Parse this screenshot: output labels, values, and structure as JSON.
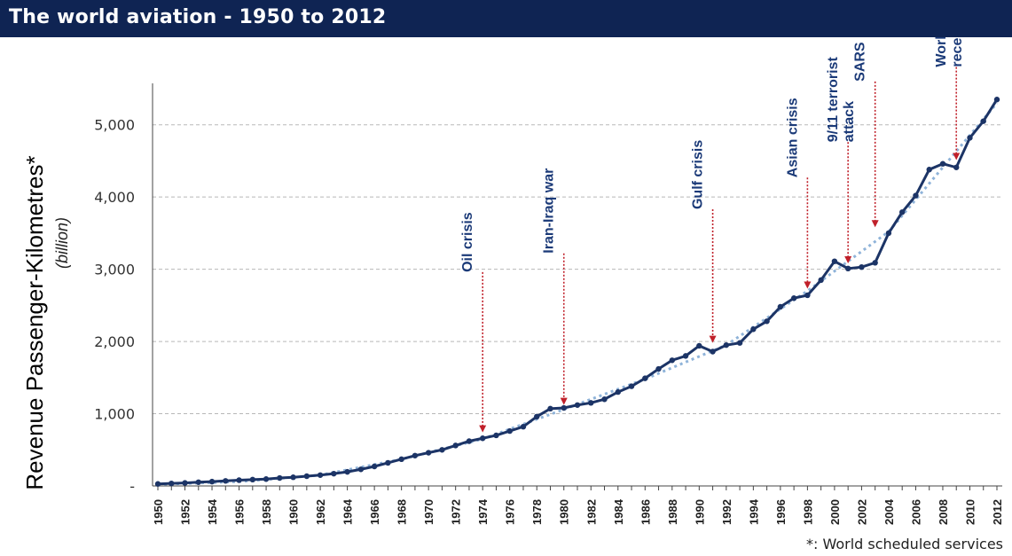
{
  "title": "The world aviation - 1950 to 2012",
  "footnote": "*: World scheduled services",
  "chart_data": {
    "type": "line",
    "ylabel": "Revenue Passenger-Kilometres*",
    "ylabel_unit": "(billion)",
    "ylim": [
      0,
      5500
    ],
    "yticks": [
      {
        "value": 0,
        "label": "-"
      },
      {
        "value": 1000,
        "label": "1,000"
      },
      {
        "value": 2000,
        "label": "2,000"
      },
      {
        "value": 3000,
        "label": "3,000"
      },
      {
        "value": 4000,
        "label": "4,000"
      },
      {
        "value": 5000,
        "label": "5,000"
      }
    ],
    "xlim": [
      1950,
      2012
    ],
    "xtick_labels": [
      "1950",
      "1952",
      "1954",
      "1956",
      "1958",
      "1960",
      "1962",
      "1964",
      "1966",
      "1968",
      "1970",
      "1972",
      "1974",
      "1976",
      "1978",
      "1980",
      "1982",
      "1984",
      "1986",
      "1988",
      "1990",
      "1992",
      "1994",
      "1996",
      "1998",
      "2000",
      "2002",
      "2004",
      "2006",
      "2008",
      "2010",
      "2012"
    ],
    "grid": "horizontal dashed",
    "series": [
      {
        "style": "solid dark navy line with markers",
        "color": "#1c3466",
        "x": [
          1950,
          1951,
          1952,
          1953,
          1954,
          1955,
          1956,
          1957,
          1958,
          1959,
          1960,
          1961,
          1962,
          1963,
          1964,
          1965,
          1966,
          1967,
          1968,
          1969,
          1970,
          1971,
          1972,
          1973,
          1974,
          1975,
          1976,
          1977,
          1978,
          1979,
          1980,
          1981,
          1982,
          1983,
          1984,
          1985,
          1986,
          1987,
          1988,
          1989,
          1990,
          1991,
          1992,
          1993,
          1994,
          1995,
          1996,
          1997,
          1998,
          1999,
          2000,
          2001,
          2002,
          2003,
          2004,
          2005,
          2006,
          2007,
          2008,
          2009,
          2010,
          2011,
          2012
        ],
        "y": [
          28,
          35,
          42,
          52,
          60,
          70,
          80,
          88,
          95,
          110,
          120,
          135,
          150,
          170,
          195,
          230,
          270,
          320,
          370,
          420,
          460,
          500,
          560,
          620,
          660,
          700,
          760,
          820,
          960,
          1070,
          1080,
          1120,
          1150,
          1200,
          1300,
          1380,
          1490,
          1620,
          1740,
          1800,
          1940,
          1860,
          1950,
          1980,
          2170,
          2280,
          2480,
          2600,
          2640,
          2850,
          3110,
          3010,
          3030,
          3090,
          3500,
          3790,
          4020,
          4380,
          4460,
          4410,
          4820,
          5050,
          5350
        ]
      },
      {
        "style": "dotted light blue trend line",
        "color": "#8fb3d9",
        "x": [
          1950,
          1956,
          1962,
          1968,
          1974,
          1980,
          1986,
          1992,
          1998,
          2004,
          2012
        ],
        "y": [
          20,
          60,
          150,
          370,
          650,
          1060,
          1480,
          1950,
          2700,
          3520,
          5300
        ]
      }
    ],
    "annotations": [
      {
        "label": "Oil crisis",
        "year": 1974,
        "y": 680,
        "line_top": 2960
      },
      {
        "label": "Iran-Iraq war",
        "year": 1980,
        "y": 1060,
        "line_top": 3220
      },
      {
        "label": "Gulf crisis",
        "year": 1991,
        "y": 1920,
        "line_top": 3830
      },
      {
        "label": "Asian crisis",
        "year": 1998,
        "y": 2670,
        "line_top": 4270
      },
      {
        "label": "9/11 terrorist attack",
        "year": 2001,
        "y": 3020,
        "line_top": 4760
      },
      {
        "label": "SARS",
        "year": 2003,
        "y": 3520,
        "line_top": 5600
      },
      {
        "label": "World recession",
        "year": 2009,
        "y": 4450,
        "line_top": 5800
      }
    ]
  }
}
